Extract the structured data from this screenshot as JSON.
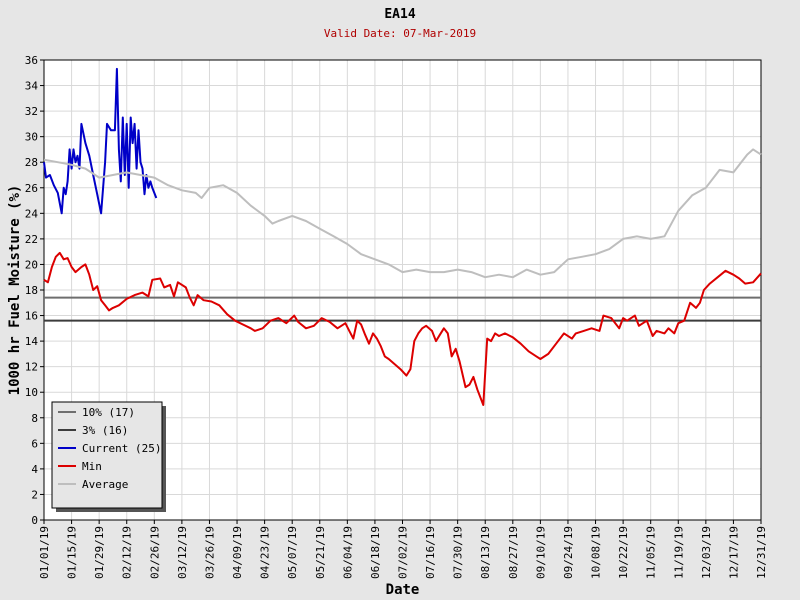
{
  "page": {
    "title": "EA14",
    "subtitle": "Valid Date: 07-Mar-2019"
  },
  "chart_data": {
    "type": "line",
    "title": "EA14",
    "subtitle": "Valid Date: 07-Mar-2019",
    "xlabel": "Date",
    "ylabel": "1000 hr Fuel Moisture (%)",
    "xlim": [
      "01/01/19",
      "12/31/19"
    ],
    "ylim": [
      0,
      36
    ],
    "yticks": [
      0,
      2,
      4,
      6,
      8,
      10,
      12,
      14,
      16,
      18,
      20,
      22,
      24,
      26,
      28,
      30,
      32,
      34,
      36
    ],
    "xticks": [
      "01/01/19",
      "01/15/19",
      "01/29/19",
      "02/12/19",
      "02/26/19",
      "03/12/19",
      "03/26/19",
      "04/09/19",
      "04/23/19",
      "05/07/19",
      "05/21/19",
      "06/04/19",
      "06/18/19",
      "07/02/19",
      "07/16/19",
      "07/30/19",
      "08/13/19",
      "08/27/19",
      "09/10/19",
      "09/24/19",
      "10/08/19",
      "10/22/19",
      "11/05/19",
      "11/19/19",
      "12/03/19",
      "12/17/19",
      "12/31/19"
    ],
    "grid": true,
    "legend_position": "bottom-left",
    "series": [
      {
        "name": "10% (17)",
        "kind": "hline",
        "value": 17.4,
        "color": "#6e6e6e"
      },
      {
        "name": "3% (16)",
        "kind": "hline",
        "value": 15.6,
        "color": "#3c3c3c"
      },
      {
        "name": "Current (25)",
        "kind": "line",
        "color": "#0000c8",
        "points": [
          [
            "01/01/19",
            28.0
          ],
          [
            "01/02/19",
            26.8
          ],
          [
            "01/04/19",
            27.0
          ],
          [
            "01/06/19",
            26.2
          ],
          [
            "01/08/19",
            25.6
          ],
          [
            "01/10/19",
            24.0
          ],
          [
            "01/11/19",
            26.0
          ],
          [
            "01/12/19",
            25.5
          ],
          [
            "01/13/19",
            26.5
          ],
          [
            "01/14/19",
            29.0
          ],
          [
            "01/15/19",
            27.5
          ],
          [
            "01/16/19",
            29.0
          ],
          [
            "01/17/19",
            28.0
          ],
          [
            "01/18/19",
            28.5
          ],
          [
            "01/19/19",
            27.5
          ],
          [
            "01/20/19",
            31.0
          ],
          [
            "01/22/19",
            29.5
          ],
          [
            "01/24/19",
            28.5
          ],
          [
            "01/26/19",
            27.0
          ],
          [
            "01/28/19",
            25.5
          ],
          [
            "01/30/19",
            24.0
          ],
          [
            "02/01/19",
            28.0
          ],
          [
            "02/02/19",
            31.0
          ],
          [
            "02/04/19",
            30.5
          ],
          [
            "02/06/19",
            30.5
          ],
          [
            "02/07/19",
            35.3
          ],
          [
            "02/08/19",
            29.0
          ],
          [
            "02/09/19",
            26.5
          ],
          [
            "02/10/19",
            31.5
          ],
          [
            "02/11/19",
            27.0
          ],
          [
            "02/12/19",
            31.0
          ],
          [
            "02/13/19",
            26.0
          ],
          [
            "02/14/19",
            31.5
          ],
          [
            "02/15/19",
            29.5
          ],
          [
            "02/16/19",
            31.0
          ],
          [
            "02/17/19",
            27.5
          ],
          [
            "02/18/19",
            30.5
          ],
          [
            "02/19/19",
            28.0
          ],
          [
            "02/20/19",
            27.5
          ],
          [
            "02/21/19",
            25.5
          ],
          [
            "02/22/19",
            27.0
          ],
          [
            "02/23/19",
            26.0
          ],
          [
            "02/24/19",
            26.5
          ],
          [
            "02/25/19",
            26.0
          ],
          [
            "02/27/19",
            25.2
          ]
        ]
      },
      {
        "name": "Min",
        "kind": "line",
        "color": "#dc0000",
        "points": [
          [
            "01/01/19",
            18.8
          ],
          [
            "01/03/19",
            18.6
          ],
          [
            "01/05/19",
            19.8
          ],
          [
            "01/07/19",
            20.6
          ],
          [
            "01/09/19",
            20.9
          ],
          [
            "01/11/19",
            20.4
          ],
          [
            "01/13/19",
            20.5
          ],
          [
            "01/15/19",
            19.8
          ],
          [
            "01/17/19",
            19.4
          ],
          [
            "01/20/19",
            19.8
          ],
          [
            "01/22/19",
            20.0
          ],
          [
            "01/24/19",
            19.2
          ],
          [
            "01/26/19",
            18.0
          ],
          [
            "01/28/19",
            18.3
          ],
          [
            "01/30/19",
            17.2
          ],
          [
            "02/01/19",
            16.8
          ],
          [
            "02/03/19",
            16.4
          ],
          [
            "02/05/19",
            16.6
          ],
          [
            "02/08/19",
            16.8
          ],
          [
            "02/12/19",
            17.3
          ],
          [
            "02/16/19",
            17.6
          ],
          [
            "02/20/19",
            17.8
          ],
          [
            "02/23/19",
            17.5
          ],
          [
            "02/25/19",
            18.8
          ],
          [
            "03/01/19",
            18.9
          ],
          [
            "03/03/19",
            18.2
          ],
          [
            "03/06/19",
            18.4
          ],
          [
            "03/08/19",
            17.5
          ],
          [
            "03/10/19",
            18.6
          ],
          [
            "03/14/19",
            18.2
          ],
          [
            "03/16/19",
            17.4
          ],
          [
            "03/18/19",
            16.8
          ],
          [
            "03/20/19",
            17.6
          ],
          [
            "03/23/19",
            17.2
          ],
          [
            "03/27/19",
            17.1
          ],
          [
            "03/31/19",
            16.8
          ],
          [
            "04/04/19",
            16.1
          ],
          [
            "04/08/19",
            15.6
          ],
          [
            "04/12/19",
            15.3
          ],
          [
            "04/16/19",
            15.0
          ],
          [
            "04/18/19",
            14.8
          ],
          [
            "04/22/19",
            15.0
          ],
          [
            "04/26/19",
            15.6
          ],
          [
            "04/30/19",
            15.8
          ],
          [
            "05/04/19",
            15.4
          ],
          [
            "05/08/19",
            16.0
          ],
          [
            "05/10/19",
            15.5
          ],
          [
            "05/14/19",
            15.0
          ],
          [
            "05/18/19",
            15.2
          ],
          [
            "05/22/19",
            15.8
          ],
          [
            "05/26/19",
            15.5
          ],
          [
            "05/30/19",
            15.0
          ],
          [
            "06/03/19",
            15.4
          ],
          [
            "06/05/19",
            14.8
          ],
          [
            "06/07/19",
            14.2
          ],
          [
            "06/09/19",
            15.6
          ],
          [
            "06/11/19",
            15.3
          ],
          [
            "06/13/19",
            14.5
          ],
          [
            "06/15/19",
            13.8
          ],
          [
            "06/17/19",
            14.6
          ],
          [
            "06/19/19",
            14.2
          ],
          [
            "06/21/19",
            13.6
          ],
          [
            "06/23/19",
            12.8
          ],
          [
            "06/25/19",
            12.6
          ],
          [
            "06/28/19",
            12.2
          ],
          [
            "07/01/19",
            11.8
          ],
          [
            "07/04/19",
            11.3
          ],
          [
            "07/06/19",
            11.8
          ],
          [
            "07/08/19",
            14.0
          ],
          [
            "07/10/19",
            14.6
          ],
          [
            "07/12/19",
            15.0
          ],
          [
            "07/14/19",
            15.2
          ],
          [
            "07/17/19",
            14.8
          ],
          [
            "07/19/19",
            14.0
          ],
          [
            "07/21/19",
            14.5
          ],
          [
            "07/23/19",
            15.0
          ],
          [
            "07/25/19",
            14.6
          ],
          [
            "07/27/19",
            12.8
          ],
          [
            "07/29/19",
            13.4
          ],
          [
            "07/31/19",
            12.4
          ],
          [
            "08/03/19",
            10.4
          ],
          [
            "08/05/19",
            10.6
          ],
          [
            "08/07/19",
            11.2
          ],
          [
            "08/09/19",
            10.2
          ],
          [
            "08/12/19",
            9.0
          ],
          [
            "08/14/19",
            14.2
          ],
          [
            "08/16/19",
            14.0
          ],
          [
            "08/18/19",
            14.6
          ],
          [
            "08/20/19",
            14.4
          ],
          [
            "08/23/19",
            14.6
          ],
          [
            "08/27/19",
            14.3
          ],
          [
            "08/31/19",
            13.8
          ],
          [
            "09/04/19",
            13.2
          ],
          [
            "09/08/19",
            12.8
          ],
          [
            "09/10/19",
            12.6
          ],
          [
            "09/14/19",
            13.0
          ],
          [
            "09/18/19",
            13.8
          ],
          [
            "09/22/19",
            14.6
          ],
          [
            "09/26/19",
            14.2
          ],
          [
            "09/28/19",
            14.6
          ],
          [
            "10/02/19",
            14.8
          ],
          [
            "10/06/19",
            15.0
          ],
          [
            "10/10/19",
            14.8
          ],
          [
            "10/12/19",
            16.0
          ],
          [
            "10/16/19",
            15.8
          ],
          [
            "10/20/19",
            15.0
          ],
          [
            "10/22/19",
            15.8
          ],
          [
            "10/24/19",
            15.6
          ],
          [
            "10/28/19",
            16.0
          ],
          [
            "10/30/19",
            15.2
          ],
          [
            "11/03/19",
            15.6
          ],
          [
            "11/06/19",
            14.4
          ],
          [
            "11/08/19",
            14.8
          ],
          [
            "11/12/19",
            14.6
          ],
          [
            "11/14/19",
            15.0
          ],
          [
            "11/17/19",
            14.6
          ],
          [
            "11/19/19",
            15.4
          ],
          [
            "11/22/19",
            15.6
          ],
          [
            "11/25/19",
            17.0
          ],
          [
            "11/28/19",
            16.6
          ],
          [
            "11/30/19",
            17.0
          ],
          [
            "12/02/19",
            18.0
          ],
          [
            "12/05/19",
            18.5
          ],
          [
            "12/09/19",
            19.0
          ],
          [
            "12/13/19",
            19.5
          ],
          [
            "12/17/19",
            19.2
          ],
          [
            "12/20/19",
            18.9
          ],
          [
            "12/23/19",
            18.5
          ],
          [
            "12/27/19",
            18.6
          ],
          [
            "12/31/19",
            19.3
          ]
        ]
      },
      {
        "name": "Average",
        "kind": "line",
        "color": "#bebebe",
        "points": [
          [
            "01/01/19",
            28.2
          ],
          [
            "01/08/19",
            28.0
          ],
          [
            "01/15/19",
            27.8
          ],
          [
            "01/22/19",
            27.5
          ],
          [
            "01/29/19",
            26.8
          ],
          [
            "02/05/19",
            27.0
          ],
          [
            "02/12/19",
            27.2
          ],
          [
            "02/19/19",
            27.0
          ],
          [
            "02/26/19",
            26.8
          ],
          [
            "03/05/19",
            26.2
          ],
          [
            "03/12/19",
            25.8
          ],
          [
            "03/19/19",
            25.6
          ],
          [
            "03/22/19",
            25.2
          ],
          [
            "03/26/19",
            26.0
          ],
          [
            "04/02/19",
            26.2
          ],
          [
            "04/09/19",
            25.6
          ],
          [
            "04/16/19",
            24.6
          ],
          [
            "04/23/19",
            23.8
          ],
          [
            "04/27/19",
            23.2
          ],
          [
            "04/30/19",
            23.4
          ],
          [
            "05/07/19",
            23.8
          ],
          [
            "05/14/19",
            23.4
          ],
          [
            "05/21/19",
            22.8
          ],
          [
            "05/28/19",
            22.2
          ],
          [
            "06/04/19",
            21.6
          ],
          [
            "06/11/19",
            20.8
          ],
          [
            "06/18/19",
            20.4
          ],
          [
            "06/25/19",
            20.0
          ],
          [
            "07/02/19",
            19.4
          ],
          [
            "07/09/19",
            19.6
          ],
          [
            "07/16/19",
            19.4
          ],
          [
            "07/23/19",
            19.4
          ],
          [
            "07/30/19",
            19.6
          ],
          [
            "08/06/19",
            19.4
          ],
          [
            "08/13/19",
            19.0
          ],
          [
            "08/20/19",
            19.2
          ],
          [
            "08/27/19",
            19.0
          ],
          [
            "09/03/19",
            19.6
          ],
          [
            "09/10/19",
            19.2
          ],
          [
            "09/17/19",
            19.4
          ],
          [
            "09/24/19",
            20.4
          ],
          [
            "10/01/19",
            20.6
          ],
          [
            "10/08/19",
            20.8
          ],
          [
            "10/15/19",
            21.2
          ],
          [
            "10/22/19",
            22.0
          ],
          [
            "10/29/19",
            22.2
          ],
          [
            "11/05/19",
            22.0
          ],
          [
            "11/12/19",
            22.2
          ],
          [
            "11/19/19",
            24.2
          ],
          [
            "11/26/19",
            25.4
          ],
          [
            "12/03/19",
            26.0
          ],
          [
            "12/10/19",
            27.4
          ],
          [
            "12/17/19",
            27.2
          ],
          [
            "12/24/19",
            28.6
          ],
          [
            "12/27/19",
            29.0
          ],
          [
            "12/31/19",
            28.6
          ]
        ]
      }
    ]
  }
}
